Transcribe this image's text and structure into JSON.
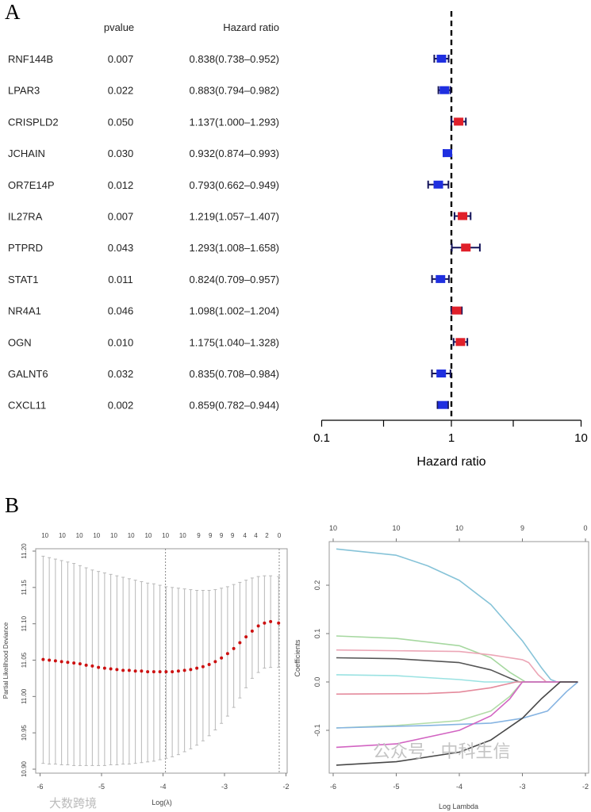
{
  "panel_labels": {
    "a": "A",
    "b": "B"
  },
  "watermarks": {
    "bottom_left": "大数跨境",
    "bottom_right": "公众号 · 中科生信"
  },
  "chart_data": [
    {
      "type": "forest",
      "panel": "A",
      "header": {
        "pvalue": "pvalue",
        "hazard_ratio": "Hazard ratio"
      },
      "xlabel": "Hazard ratio",
      "xscale": "log10",
      "xlim": [
        0.1,
        10
      ],
      "xticks": [
        0.1,
        0.3,
        1,
        3,
        10
      ],
      "xtick_labels": [
        "0.1",
        "",
        "1",
        "",
        "10"
      ],
      "reference_line": 1,
      "colors": {
        "protective": "#1f2fe0",
        "risk": "#e0202a",
        "ci": "#14145a"
      },
      "rows": [
        {
          "gene": "RNF144B",
          "pvalue": "0.007",
          "hr_text": "0.838(0.738–0.952)",
          "hr": 0.838,
          "lo": 0.738,
          "hi": 0.952
        },
        {
          "gene": "LPAR3",
          "pvalue": "0.022",
          "hr_text": "0.883(0.794–0.982)",
          "hr": 0.883,
          "lo": 0.794,
          "hi": 0.982
        },
        {
          "gene": "CRISPLD2",
          "pvalue": "0.050",
          "hr_text": "1.137(1.000–1.293)",
          "hr": 1.137,
          "lo": 1.0,
          "hi": 1.293
        },
        {
          "gene": "JCHAIN",
          "pvalue": "0.030",
          "hr_text": "0.932(0.874–0.993)",
          "hr": 0.932,
          "lo": 0.874,
          "hi": 0.993
        },
        {
          "gene": "OR7E14P",
          "pvalue": "0.012",
          "hr_text": "0.793(0.662–0.949)",
          "hr": 0.793,
          "lo": 0.662,
          "hi": 0.949
        },
        {
          "gene": "IL27RA",
          "pvalue": "0.007",
          "hr_text": "1.219(1.057–1.407)",
          "hr": 1.219,
          "lo": 1.057,
          "hi": 1.407
        },
        {
          "gene": "PTPRD",
          "pvalue": "0.043",
          "hr_text": "1.293(1.008–1.658)",
          "hr": 1.293,
          "lo": 1.008,
          "hi": 1.658
        },
        {
          "gene": "STAT1",
          "pvalue": "0.011",
          "hr_text": "0.824(0.709–0.957)",
          "hr": 0.824,
          "lo": 0.709,
          "hi": 0.957
        },
        {
          "gene": "NR4A1",
          "pvalue": "0.046",
          "hr_text": "1.098(1.002–1.204)",
          "hr": 1.098,
          "lo": 1.002,
          "hi": 1.204
        },
        {
          "gene": "OGN",
          "pvalue": "0.010",
          "hr_text": "1.175(1.040–1.328)",
          "hr": 1.175,
          "lo": 1.04,
          "hi": 1.328
        },
        {
          "gene": "GALNT6",
          "pvalue": "0.032",
          "hr_text": "0.835(0.708–0.984)",
          "hr": 0.835,
          "lo": 0.708,
          "hi": 0.984
        },
        {
          "gene": "CXCL11",
          "pvalue": "0.002",
          "hr_text": "0.859(0.782–0.944)",
          "hr": 0.859,
          "lo": 0.782,
          "hi": 0.944
        }
      ]
    },
    {
      "type": "scatter",
      "panel": "B-left",
      "title": "",
      "xlabel": "Log(λ)",
      "ylabel": "Partial Likelihood Deviance",
      "xlim": [
        -6,
        -2
      ],
      "ylim": [
        10.9,
        11.2
      ],
      "xticks": [
        -6,
        -5,
        -4,
        -3,
        -2
      ],
      "yticks": [
        10.9,
        10.95,
        11.0,
        11.05,
        11.1,
        11.15,
        11.2
      ],
      "ytick_labels": [
        "10.90",
        "10.95",
        "11.00",
        "11.05",
        "11.10",
        "11.15",
        "11.20"
      ],
      "vlines": [
        -3.96,
        -2.11
      ],
      "point_color": "#cc1111",
      "errorbar_color": "#b8b8b8",
      "top_ticks": [
        {
          "x": -5.92,
          "label": "10"
        },
        {
          "x": -5.64,
          "label": "10"
        },
        {
          "x": -5.36,
          "label": "10"
        },
        {
          "x": -5.08,
          "label": "10"
        },
        {
          "x": -4.8,
          "label": "10"
        },
        {
          "x": -4.52,
          "label": "10"
        },
        {
          "x": -4.24,
          "label": "10"
        },
        {
          "x": -3.96,
          "label": "10"
        },
        {
          "x": -3.68,
          "label": "10"
        },
        {
          "x": -3.42,
          "label": "9"
        },
        {
          "x": -3.23,
          "label": "9"
        },
        {
          "x": -3.05,
          "label": "9"
        },
        {
          "x": -2.87,
          "label": "9"
        },
        {
          "x": -2.67,
          "label": "4"
        },
        {
          "x": -2.49,
          "label": "4"
        },
        {
          "x": -2.31,
          "label": "2"
        },
        {
          "x": -2.11,
          "label": "0"
        }
      ],
      "x": [
        -5.95,
        -5.85,
        -5.75,
        -5.65,
        -5.55,
        -5.45,
        -5.35,
        -5.25,
        -5.15,
        -5.05,
        -4.95,
        -4.85,
        -4.75,
        -4.65,
        -4.55,
        -4.45,
        -4.35,
        -4.25,
        -4.15,
        -4.05,
        -3.95,
        -3.85,
        -3.75,
        -3.65,
        -3.55,
        -3.45,
        -3.35,
        -3.25,
        -3.15,
        -3.05,
        -2.95,
        -2.85,
        -2.75,
        -2.65,
        -2.55,
        -2.45,
        -2.35,
        -2.25,
        -2.12
      ],
      "mean": [
        11.051,
        11.05,
        11.049,
        11.048,
        11.047,
        11.046,
        11.045,
        11.043,
        11.042,
        11.04,
        11.039,
        11.038,
        11.037,
        11.036,
        11.036,
        11.035,
        11.035,
        11.034,
        11.034,
        11.034,
        11.034,
        11.034,
        11.035,
        11.036,
        11.037,
        11.039,
        11.041,
        11.044,
        11.048,
        11.053,
        11.059,
        11.066,
        11.074,
        11.082,
        11.09,
        11.097,
        11.101,
        11.103,
        11.101
      ],
      "upper": [
        11.193,
        11.191,
        11.189,
        11.187,
        11.185,
        11.183,
        11.18,
        11.177,
        11.174,
        11.172,
        11.17,
        11.168,
        11.166,
        11.164,
        11.162,
        11.16,
        11.158,
        11.156,
        11.155,
        11.153,
        11.151,
        11.15,
        11.149,
        11.148,
        11.147,
        11.146,
        11.146,
        11.146,
        11.147,
        11.149,
        11.151,
        11.154,
        11.157,
        11.16,
        11.163,
        11.165,
        11.166,
        11.166,
        11.165
      ],
      "lower": [
        10.908,
        10.907,
        10.907,
        10.906,
        10.906,
        10.905,
        10.905,
        10.905,
        10.905,
        10.905,
        10.905,
        10.906,
        10.906,
        10.907,
        10.907,
        10.908,
        10.909,
        10.91,
        10.911,
        10.913,
        10.915,
        10.917,
        10.92,
        10.924,
        10.928,
        10.933,
        10.939,
        10.946,
        10.954,
        10.963,
        10.973,
        10.985,
        10.998,
        11.012,
        11.025,
        11.033,
        11.039,
        11.04,
        11.04
      ]
    },
    {
      "type": "line",
      "panel": "B-right",
      "xlabel": "Log Lambda",
      "ylabel": "Coefficients",
      "xlim": [
        -6,
        -2
      ],
      "ylim": [
        -0.18,
        0.29
      ],
      "xticks": [
        -6,
        -5,
        -4,
        -3,
        -2
      ],
      "yticks": [
        -0.1,
        0.0,
        0.1,
        0.2
      ],
      "ytick_labels": [
        "-0.1",
        "0.0",
        "0.1",
        "0.2"
      ],
      "top_ticks": [
        {
          "x": -6,
          "label": "10"
        },
        {
          "x": -5,
          "label": "10"
        },
        {
          "x": -4,
          "label": "10"
        },
        {
          "x": -3,
          "label": "9"
        },
        {
          "x": -2,
          "label": "0"
        }
      ],
      "series": [
        {
          "color": "#86c3d8",
          "x": [
            -5.95,
            -5,
            -4.5,
            -4,
            -3.5,
            -3,
            -2.7,
            -2.55,
            -2.45,
            -2.12
          ],
          "y": [
            0.275,
            0.262,
            0.24,
            0.21,
            0.16,
            0.085,
            0.03,
            0.005,
            0,
            0
          ]
        },
        {
          "color": "#a6d8a0",
          "x": [
            -5.95,
            -5,
            -4,
            -3.5,
            -3.2,
            -2.95,
            -2.12
          ],
          "y": [
            0.095,
            0.09,
            0.075,
            0.05,
            0.02,
            0,
            0
          ]
        },
        {
          "color": "#eca6b6",
          "x": [
            -5.95,
            -4,
            -3.5,
            -3,
            -2.9,
            -2.75,
            -2.62,
            -2.12
          ],
          "y": [
            0.066,
            0.063,
            0.056,
            0.046,
            0.04,
            0.015,
            0,
            0
          ]
        },
        {
          "color": "#555555",
          "x": [
            -5.95,
            -5,
            -4,
            -3.5,
            -3.2,
            -3.05,
            -2.12
          ],
          "y": [
            0.05,
            0.048,
            0.04,
            0.025,
            0.008,
            0,
            0
          ]
        },
        {
          "color": "#9ae2e2",
          "x": [
            -5.95,
            -5,
            -4,
            -3.6,
            -2.12
          ],
          "y": [
            0.015,
            0.013,
            0.005,
            0,
            0
          ]
        },
        {
          "color": "#e48a9c",
          "x": [
            -5.95,
            -4.5,
            -4,
            -3.5,
            -3.1,
            -2.12
          ],
          "y": [
            -0.025,
            -0.024,
            -0.021,
            -0.012,
            0,
            0
          ]
        },
        {
          "color": "#b2dca8",
          "x": [
            -5.95,
            -5,
            -4,
            -3.5,
            -3.2,
            -3.0,
            -2.12
          ],
          "y": [
            -0.095,
            -0.09,
            -0.08,
            -0.06,
            -0.03,
            0,
            0
          ]
        },
        {
          "color": "#86b4e2",
          "x": [
            -5.95,
            -4.5,
            -3.5,
            -3,
            -2.6,
            -2.3,
            -2.12
          ],
          "y": [
            -0.095,
            -0.09,
            -0.085,
            -0.075,
            -0.06,
            -0.02,
            0
          ]
        },
        {
          "color": "#d264c2",
          "x": [
            -5.95,
            -5,
            -4,
            -3.5,
            -3.2,
            -3.0,
            -2.12
          ],
          "y": [
            -0.135,
            -0.128,
            -0.1,
            -0.07,
            -0.035,
            0,
            0
          ]
        },
        {
          "color": "#484848",
          "x": [
            -5.95,
            -5,
            -4,
            -3.5,
            -3,
            -2.7,
            -2.4,
            -2.12
          ],
          "y": [
            -0.172,
            -0.165,
            -0.145,
            -0.12,
            -0.075,
            -0.035,
            0,
            0
          ]
        }
      ]
    }
  ]
}
